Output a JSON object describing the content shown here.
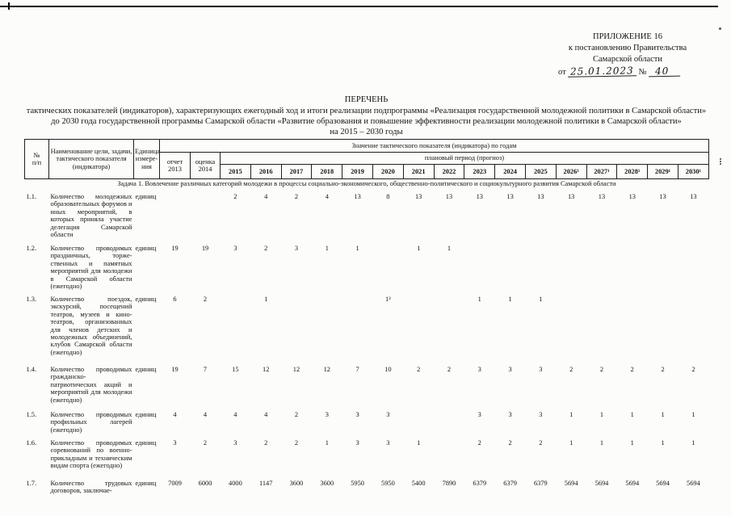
{
  "appendix": {
    "line1": "ПРИЛОЖЕНИЕ 16",
    "line2": "к постановлению Правительства",
    "line3": "Самарской области",
    "date_prefix": "от",
    "date_value": "25.01.2023",
    "number_sign": "№",
    "number_value": "40"
  },
  "title": {
    "heading": "ПЕРЕЧЕНЬ",
    "body": "тактических показателей (индикаторов), характеризующих ежегодный ход и итоги реализации подпрограммы «Реализация государственной молодежной политики в Самарской области» до 2030 года государственной программы Самарской области «Развитие образования и повышение эффективности реализации молодежной политики в Самарской области»",
    "period": "на 2015 – 2030 годы"
  },
  "table": {
    "headers": {
      "num_line1": "№",
      "num_line2": "п/п",
      "name": "Наименование цели, за­дачи, тактического по­казателя (индикатора)",
      "unit": "Единица измере­ния",
      "values_group": "Значение тактического показателя (индикатора) по годам",
      "report_label": "отчет",
      "report_year": "2013",
      "estimate_label": "оценка",
      "estimate_year": "2014",
      "plan_group": "плановый период (прогноз)",
      "years": [
        "2015",
        "2016",
        "2017",
        "2018",
        "2019",
        "2020",
        "2021",
        "2022",
        "2023",
        "2024",
        "2025",
        "2026¹",
        "2027¹",
        "2028¹",
        "2029¹",
        "2030¹"
      ]
    },
    "section": "Задача 1. Вовлечение различных категорий молодежи в процессы социально-экономического, общественно-политического и социокультурного развития Самарской области",
    "rows": [
      {
        "num": "1.1.",
        "name": "Количество молодежных образовательных фору­мов и иных мероприя­тий, в которых приняла участие делегация Са­марской области",
        "unit": "единиц",
        "values": [
          "",
          "",
          "2",
          "4",
          "2",
          "4",
          "13",
          "8",
          "13",
          "13",
          "13",
          "13",
          "13",
          "13",
          "13",
          "13",
          "13",
          "13"
        ]
      },
      {
        "num": "1.2.",
        "name": "Количество проводимых праздничных, торже­ственных и памятных мероприятий для моло­дежи в Самарской обла­сти (ежегодно)",
        "unit": "единиц",
        "values": [
          "19",
          "19",
          "3",
          "2",
          "3",
          "1",
          "1",
          "",
          "1",
          "1",
          "",
          "",
          "",
          "",
          "",
          "",
          "",
          ""
        ]
      },
      {
        "num": "1.3.",
        "name": "Количество поездок, экскурсий, посещений театров, музеев и кино­театров, организованных для членов детских и молодежных объеди­нений, клубов Самар­ской области (ежегодно)",
        "unit": "единиц",
        "values": [
          "6",
          "2",
          "",
          "1",
          "",
          "",
          "",
          "1²",
          "",
          "",
          "1",
          "1",
          "1",
          "",
          "",
          "",
          "",
          ""
        ]
      },
      {
        "num": "1.4.",
        "name": "Количество проводи­мых гражданско-патриотических акций и мероприятий для мо­лодежи (ежегодно)",
        "unit": "единиц",
        "values": [
          "19",
          "7",
          "15",
          "12",
          "12",
          "12",
          "7",
          "10",
          "2",
          "2",
          "3",
          "3",
          "3",
          "2",
          "2",
          "2",
          "2",
          "2"
        ]
      },
      {
        "num": "1.5.",
        "name": "Количество проводи­мых профильных лаге­рей (ежегодно)",
        "unit": "единиц",
        "values": [
          "4",
          "4",
          "4",
          "4",
          "2",
          "3",
          "3",
          "3",
          "",
          "",
          "3",
          "3",
          "3",
          "1",
          "1",
          "1",
          "1",
          "1"
        ]
      },
      {
        "num": "1.6.",
        "name": "Количество проводи­мых соревнований по военно-прикладным и техническим видам спорта (ежегодно)",
        "unit": "единиц",
        "values": [
          "3",
          "2",
          "3",
          "2",
          "2",
          "1",
          "3",
          "3",
          "1",
          "",
          "2",
          "2",
          "2",
          "1",
          "1",
          "1",
          "1",
          "1"
        ]
      },
      {
        "num": "1.7.",
        "name": "Количество трудовых договоров, заключае-",
        "unit": "единиц",
        "values": [
          "7009",
          "6000",
          "4000",
          "1147",
          "3600",
          "3600",
          "5950",
          "5950",
          "5400",
          "7890",
          "6379",
          "6379",
          "6379",
          "5694",
          "5694",
          "5694",
          "5694",
          "5694"
        ]
      }
    ]
  }
}
